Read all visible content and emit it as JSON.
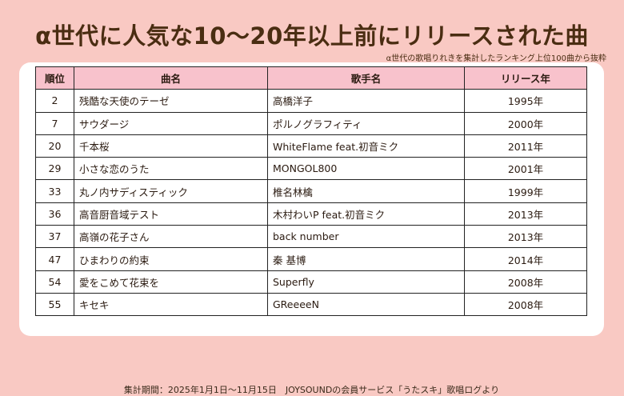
{
  "header": {
    "title": "α世代に人気な10〜20年以上前にリリースされた曲",
    "subtitle": "α世代の歌唱りれきを集計したランキング上位100曲から抜粋"
  },
  "table": {
    "columns": [
      "順位",
      "曲名",
      "歌手名",
      "リリース年"
    ],
    "rows": [
      {
        "rank": "2",
        "song": "残酷な天使のテーゼ",
        "artist": "高橋洋子",
        "year": "1995年"
      },
      {
        "rank": "7",
        "song": "サウダージ",
        "artist": "ポルノグラフィティ",
        "year": "2000年"
      },
      {
        "rank": "20",
        "song": "千本桜",
        "artist": "WhiteFlame feat.初音ミク",
        "year": "2011年"
      },
      {
        "rank": "29",
        "song": "小さな恋のうた",
        "artist": "MONGOL800",
        "year": "2001年"
      },
      {
        "rank": "33",
        "song": "丸ノ内サディスティック",
        "artist": "椎名林檎",
        "year": "1999年"
      },
      {
        "rank": "36",
        "song": "高音厨音域テスト",
        "artist": "木村わいP feat.初音ミク",
        "year": "2013年"
      },
      {
        "rank": "37",
        "song": "高嶺の花子さん",
        "artist": "back number",
        "year": "2013年"
      },
      {
        "rank": "47",
        "song": "ひまわりの約束",
        "artist": "秦 基博",
        "year": "2014年"
      },
      {
        "rank": "54",
        "song": "愛をこめて花束を",
        "artist": "Superfly",
        "year": "2008年"
      },
      {
        "rank": "55",
        "song": "キセキ",
        "artist": "GReeeeN",
        "year": "2008年"
      }
    ]
  },
  "footer": {
    "note": "集計期間：2025年1月1日〜11月15日　JOYSOUNDの会員サービス「うたスキ」歌唱ログより"
  }
}
